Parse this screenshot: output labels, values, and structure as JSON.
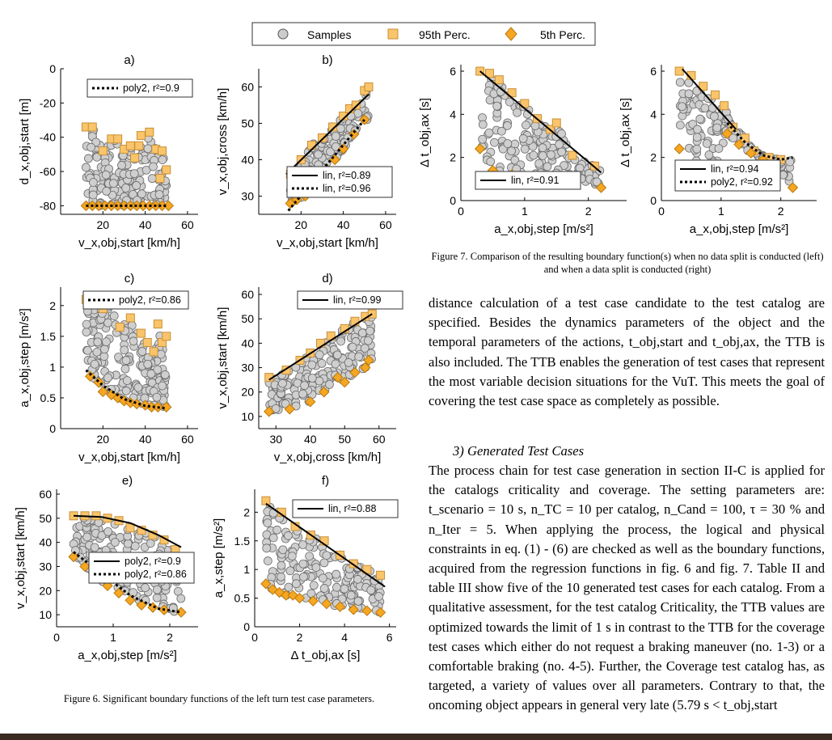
{
  "legend": {
    "samples": "Samples",
    "p95": "95th Perc.",
    "p5": "5th Perc."
  },
  "chart_data": [
    {
      "id": "a",
      "type": "scatter",
      "title": "a)",
      "xlabel": "v_x,obj,start [km/h]",
      "ylabel": "d_x,obj,start [m]",
      "xlim": [
        0,
        65
      ],
      "ylim": [
        -85,
        0
      ],
      "xticks": [
        20,
        40,
        60
      ],
      "yticks": [
        0,
        -20,
        -40,
        -60,
        -80
      ],
      "fit_legend": [
        "poly2, r²=0.9"
      ],
      "p95": [
        [
          12,
          -34
        ],
        [
          15,
          -34
        ],
        [
          20,
          -48
        ],
        [
          24,
          -41
        ],
        [
          27,
          -41
        ],
        [
          30,
          -47
        ],
        [
          33,
          -45
        ],
        [
          35,
          -52
        ],
        [
          37,
          -45
        ],
        [
          38,
          -39
        ],
        [
          42,
          -37
        ],
        [
          45,
          -47
        ],
        [
          47,
          -64
        ],
        [
          48,
          -48
        ],
        [
          50,
          -59
        ]
      ],
      "p5": [
        [
          12,
          -80
        ],
        [
          15,
          -80
        ],
        [
          18,
          -80
        ],
        [
          21,
          -80
        ],
        [
          24,
          -80
        ],
        [
          27,
          -80
        ],
        [
          30,
          -80
        ],
        [
          33,
          -80
        ],
        [
          36,
          -80
        ],
        [
          39,
          -80
        ],
        [
          42,
          -80
        ],
        [
          45,
          -80
        ],
        [
          48,
          -80
        ],
        [
          51,
          -80
        ]
      ],
      "fits": [
        {
          "style": "dotted",
          "pts": [
            [
              12,
              -80
            ],
            [
              51,
              -80
            ]
          ]
        }
      ]
    },
    {
      "id": "b",
      "type": "scatter",
      "title": "b)",
      "xlabel": "v_x,obj,start [km/h]",
      "ylabel": "v_x,obj,cross [km/h]",
      "xlim": [
        0,
        65
      ],
      "ylim": [
        25,
        65
      ],
      "xticks": [
        20,
        40,
        60
      ],
      "yticks": [
        30,
        40,
        50,
        60
      ],
      "fit_legend": [
        "lin, r²=0.89",
        "lin, r²=0.96"
      ],
      "p95": [
        [
          15,
          36
        ],
        [
          20,
          40
        ],
        [
          25,
          44
        ],
        [
          30,
          46
        ],
        [
          35,
          49
        ],
        [
          40,
          52
        ],
        [
          43,
          54
        ],
        [
          46,
          55
        ],
        [
          50,
          59
        ],
        [
          52,
          60
        ]
      ],
      "p5": [
        [
          15,
          28
        ],
        [
          18,
          29
        ],
        [
          22,
          30
        ],
        [
          26,
          33
        ],
        [
          30,
          35
        ],
        [
          33,
          37
        ],
        [
          36,
          40
        ],
        [
          40,
          43
        ],
        [
          45,
          47
        ],
        [
          50,
          51
        ]
      ],
      "fits": [
        {
          "style": "solid",
          "pts": [
            [
              13,
              36
            ],
            [
              52,
              58
            ]
          ]
        },
        {
          "style": "dotted",
          "pts": [
            [
              14,
              26
            ],
            [
              50,
              51
            ]
          ]
        }
      ]
    },
    {
      "id": "c",
      "type": "scatter",
      "title": "c)",
      "xlabel": "v_x,obj,start [km/h]",
      "ylabel": "a_x,obj,step [m/s²]",
      "xlim": [
        0,
        65
      ],
      "ylim": [
        0,
        2.3
      ],
      "xticks": [
        20,
        40,
        60
      ],
      "yticks": [
        0,
        0.5,
        1,
        1.5,
        2
      ],
      "fit_legend": [
        "poly2, r²=0.86"
      ],
      "p95": [
        [
          12,
          2.1
        ],
        [
          20,
          1.95
        ],
        [
          25,
          2.05
        ],
        [
          28,
          1.65
        ],
        [
          33,
          1.8
        ],
        [
          38,
          1.55
        ],
        [
          41,
          1.4
        ],
        [
          44,
          1.25
        ],
        [
          46,
          1.7
        ],
        [
          48,
          1.4
        ],
        [
          50,
          1.5
        ]
      ],
      "p5": [
        [
          14,
          0.85
        ],
        [
          18,
          0.75
        ],
        [
          20,
          0.6
        ],
        [
          24,
          0.55
        ],
        [
          27,
          0.5
        ],
        [
          30,
          0.45
        ],
        [
          33,
          0.42
        ],
        [
          36,
          0.4
        ],
        [
          40,
          0.38
        ],
        [
          43,
          0.35
        ],
        [
          46,
          0.35
        ],
        [
          50,
          0.35
        ]
      ],
      "fits": [
        {
          "style": "dotted",
          "pts": [
            [
              12,
              0.95
            ],
            [
              20,
              0.7
            ],
            [
              30,
              0.48
            ],
            [
              40,
              0.37
            ],
            [
              50,
              0.33
            ]
          ]
        }
      ]
    },
    {
      "id": "d",
      "type": "scatter",
      "title": "d)",
      "xlabel": "v_x,obj,cross [km/h]",
      "ylabel": "v_x,obj,start [km/h]",
      "xlim": [
        25,
        65
      ],
      "ylim": [
        5,
        63
      ],
      "xticks": [
        30,
        40,
        50,
        60
      ],
      "yticks": [
        10,
        20,
        30,
        40,
        50,
        60
      ],
      "fit_legend": [
        "lin, r²=0.99"
      ],
      "p95": [
        [
          28,
          26
        ],
        [
          33,
          29
        ],
        [
          37,
          33
        ],
        [
          40,
          36
        ],
        [
          43,
          40
        ],
        [
          46,
          43
        ],
        [
          50,
          46
        ],
        [
          53,
          49
        ],
        [
          56,
          51
        ],
        [
          58,
          52
        ]
      ],
      "p5": [
        [
          28,
          12
        ],
        [
          34,
          13
        ],
        [
          40,
          16
        ],
        [
          44,
          20
        ],
        [
          48,
          26
        ],
        [
          50,
          24
        ],
        [
          53,
          28
        ],
        [
          56,
          30
        ],
        [
          57,
          33
        ]
      ],
      "fits": [
        {
          "style": "solid",
          "pts": [
            [
              28,
              25
            ],
            [
              58,
              52
            ]
          ]
        }
      ]
    },
    {
      "id": "e",
      "type": "scatter",
      "title": "e)",
      "xlabel": "a_x,obj,step [m/s²]",
      "ylabel": "v_x,obj,start [km/h]",
      "xlim": [
        0,
        2.5
      ],
      "ylim": [
        5,
        62
      ],
      "xticks": [
        0,
        1,
        2
      ],
      "yticks": [
        10,
        20,
        30,
        40,
        50,
        60
      ],
      "fit_legend": [
        "poly2, r²=0.9",
        "poly2, r²=0.86"
      ],
      "p95": [
        [
          0.3,
          51
        ],
        [
          0.5,
          51
        ],
        [
          0.7,
          51
        ],
        [
          0.9,
          50
        ],
        [
          1.1,
          49
        ],
        [
          1.3,
          46
        ],
        [
          1.5,
          45
        ],
        [
          1.7,
          43
        ],
        [
          1.9,
          41
        ],
        [
          2.1,
          37
        ]
      ],
      "p5": [
        [
          0.3,
          34
        ],
        [
          0.5,
          30
        ],
        [
          0.7,
          26
        ],
        [
          0.9,
          22
        ],
        [
          1.1,
          19
        ],
        [
          1.3,
          16
        ],
        [
          1.5,
          14
        ],
        [
          1.7,
          13
        ],
        [
          1.9,
          12
        ],
        [
          2.2,
          11
        ]
      ],
      "fits": [
        {
          "style": "solid",
          "pts": [
            [
              0.3,
              51
            ],
            [
              0.8,
              50.5
            ],
            [
              1.3,
              48
            ],
            [
              1.8,
              43
            ],
            [
              2.2,
              38
            ]
          ]
        },
        {
          "style": "dotted",
          "pts": [
            [
              0.3,
              36
            ],
            [
              0.8,
              27
            ],
            [
              1.3,
              18
            ],
            [
              1.8,
              12.5
            ],
            [
              2.2,
              11
            ]
          ]
        }
      ]
    },
    {
      "id": "f",
      "type": "scatter",
      "title": "f)",
      "xlabel": "Δ t_obj,ax [s]",
      "ylabel": "a_x,step [m/s²]",
      "xlim": [
        0,
        6.3
      ],
      "ylim": [
        0,
        2.4
      ],
      "xticks": [
        0,
        2,
        4,
        6
      ],
      "yticks": [
        0,
        0.5,
        1,
        1.5,
        2
      ],
      "fit_legend": [
        "lin, r²=0.88"
      ],
      "p95": [
        [
          0.5,
          2.2
        ],
        [
          1.2,
          2.0
        ],
        [
          1.8,
          1.75
        ],
        [
          2.5,
          1.6
        ],
        [
          3.1,
          1.5
        ],
        [
          3.8,
          1.25
        ],
        [
          4.4,
          1.1
        ],
        [
          5.0,
          1.0
        ],
        [
          5.6,
          0.9
        ]
      ],
      "p5": [
        [
          0.5,
          0.75
        ],
        [
          0.8,
          0.65
        ],
        [
          1.1,
          0.6
        ],
        [
          1.4,
          0.55
        ],
        [
          1.7,
          0.55
        ],
        [
          2.0,
          0.5
        ],
        [
          2.6,
          0.45
        ],
        [
          3.2,
          0.4
        ],
        [
          3.8,
          0.35
        ],
        [
          4.4,
          0.3
        ],
        [
          5.0,
          0.28
        ],
        [
          5.6,
          0.25
        ]
      ],
      "fits": [
        {
          "style": "solid",
          "pts": [
            [
              0.5,
              2.15
            ],
            [
              5.8,
              0.7
            ]
          ]
        }
      ]
    },
    {
      "id": "g-left",
      "type": "scatter",
      "title": "",
      "xlabel": "a_x,obj,step [m/s²]",
      "ylabel": "Δ t_obj,ax [s]",
      "xlim": [
        0,
        2.6
      ],
      "ylim": [
        0,
        6.3
      ],
      "xticks": [
        0,
        1,
        2
      ],
      "yticks": [
        0,
        2,
        4,
        6
      ],
      "fit_legend": [
        "lin, r²=0.91"
      ],
      "p95": [
        [
          0.3,
          6
        ],
        [
          0.45,
          5.9
        ],
        [
          0.6,
          5.6
        ],
        [
          0.8,
          5.0
        ],
        [
          1.0,
          4.5
        ],
        [
          1.2,
          3.8
        ],
        [
          1.4,
          3.3
        ],
        [
          1.5,
          3.6
        ],
        [
          1.75,
          2.1
        ],
        [
          2.1,
          1.6
        ]
      ],
      "p5": [
        [
          0.3,
          2.4
        ],
        [
          0.5,
          1.4
        ],
        [
          0.8,
          1.2
        ],
        [
          1.1,
          1.1
        ],
        [
          1.4,
          0.9
        ],
        [
          1.7,
          0.8
        ],
        [
          2.2,
          0.6
        ]
      ],
      "fits": [
        {
          "style": "solid",
          "pts": [
            [
              0.3,
              6
            ],
            [
              2.2,
              1.3
            ]
          ]
        }
      ]
    },
    {
      "id": "g-right",
      "type": "scatter",
      "title": "",
      "xlabel": "a_x,obj,step [m/s²]",
      "ylabel": "Δ t_obj,ax [s]",
      "xlim": [
        0,
        2.6
      ],
      "ylim": [
        0,
        6.3
      ],
      "xticks": [
        0,
        1,
        2
      ],
      "yticks": [
        0,
        2,
        4,
        6
      ],
      "fit_legend": [
        "lin, r²=0.94",
        "poly2, r²=0.92"
      ],
      "p95": [
        [
          0.3,
          6
        ],
        [
          0.5,
          5.8
        ],
        [
          0.7,
          5.3
        ],
        [
          0.9,
          4.9
        ],
        [
          1.05,
          4.4
        ],
        [
          1.2,
          3.4
        ],
        [
          1.4,
          2.9
        ],
        [
          1.55,
          2.3
        ],
        [
          1.8,
          2.0
        ],
        [
          2.0,
          1.9
        ]
      ],
      "p5": [
        [
          0.3,
          2.4
        ],
        [
          0.6,
          1.6
        ],
        [
          0.9,
          1.4
        ],
        [
          1.1,
          3.1
        ],
        [
          1.3,
          2.6
        ],
        [
          1.5,
          2.2
        ],
        [
          1.7,
          1.9
        ],
        [
          1.9,
          1.6
        ],
        [
          2.2,
          0.6
        ]
      ],
      "fits": [
        {
          "style": "solid",
          "pts": [
            [
              0.35,
              6.1
            ],
            [
              1.25,
              3.3
            ]
          ]
        },
        {
          "style": "dotted",
          "pts": [
            [
              1.1,
              3.6
            ],
            [
              1.4,
              2.7
            ],
            [
              1.7,
              2.1
            ],
            [
              2.0,
              1.9
            ],
            [
              2.2,
              2.0
            ]
          ]
        }
      ]
    }
  ],
  "captions": {
    "fig6": "Figure 6.   Significant boundary functions of the left turn test case parameters.",
    "fig7": "Figure 7.   Comparison of the resulting boundary function(s) when no data split is conducted (left) and when a data split is conducted (right)"
  },
  "text": {
    "para1": "distance calculation of a test case candidate to the test catalog are specified. Besides the dynamics parameters of the object and the temporal parameters of the actions, t_obj,start and t_obj,ax, the TTB is also included. The TTB enables the generation of test cases that represent the most variable decision situations for the VuT. This meets the goal of covering the test case space as completely as possible.",
    "section": "3)   Generated Test Cases",
    "para2": "The process chain for test case generation in section II-C is applied for the catalogs criticality and coverage. The setting parameters are: t_scenario = 10 s, n_TC = 10 per catalog, n_Cand = 100, τ = 30 % and n_Iter = 5. When applying the process, the logical and physical constraints in eq. (1) - (6) are checked as well as the boundary functions, acquired from the regression functions in fig. 6 and fig. 7. Table II and table III show five of the 10 generated test cases for each catalog. From a qualitative assessment, for the test catalog Criticality, the TTB values are optimized towards the limit of 1 s in contrast to the TTB for the coverage test cases which either do not request a braking maneuver (no. 1-3) or a comfortable braking (no. 4-5). Further, the Coverage test catalog has, as targeted, a variety of values over all parameters. Contrary to that, the oncoming object appears in general very late (5.79 s < t_obj,start"
  }
}
